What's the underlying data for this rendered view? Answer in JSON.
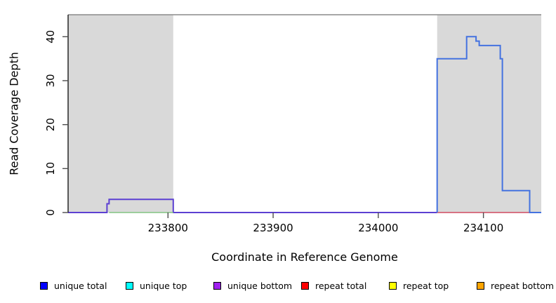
{
  "chart_data": {
    "type": "line",
    "subtype": "step-coverage",
    "title": "",
    "xlabel": "Coordinate in Reference Genome",
    "ylabel": "Read Coverage Depth",
    "xlim": [
      233705,
      234155
    ],
    "ylim": [
      0,
      45
    ],
    "x_ticks": [
      233800,
      233900,
      234000,
      234100
    ],
    "y_ticks": [
      0,
      10,
      20,
      30,
      40
    ],
    "grid": false,
    "plot_bg": "#ffffff",
    "frame": {
      "top_border_color": "#8a8a8a",
      "axis_color": "#1a1a1a",
      "tick_color": "#4d4d4d",
      "text_color": "#000000",
      "shade_color": "#d9d9d9"
    },
    "shaded_regions": [
      {
        "x0": 233705,
        "x1": 233805
      },
      {
        "x0": 234056,
        "x1": 234155
      }
    ],
    "series": [
      {
        "name": "unique_bottom_total_overlap",
        "color": "#5c40d2",
        "width": 2,
        "points": [
          [
            233705,
            0
          ],
          [
            233742,
            0
          ],
          [
            233742,
            2
          ],
          [
            233744,
            2
          ],
          [
            233744,
            3
          ],
          [
            233805,
            3
          ],
          [
            233805,
            0
          ],
          [
            234056,
            0
          ]
        ]
      },
      {
        "name": "top_strand_zero_overlap",
        "color": "#82c482",
        "width": 1.6,
        "points": [
          [
            233744,
            0
          ],
          [
            233805,
            0
          ]
        ]
      },
      {
        "name": "repeat_total_zero",
        "color": "#d04a60",
        "width": 1.6,
        "points": [
          [
            234056,
            0
          ],
          [
            234144,
            0
          ]
        ]
      },
      {
        "name": "unique_total_block",
        "color": "#4472e0",
        "width": 2,
        "points": [
          [
            234056,
            0
          ],
          [
            234056,
            35
          ],
          [
            234084,
            35
          ],
          [
            234084,
            40
          ],
          [
            234093,
            40
          ],
          [
            234093,
            39
          ],
          [
            234096,
            39
          ],
          [
            234096,
            38
          ],
          [
            234116,
            38
          ],
          [
            234116,
            35
          ],
          [
            234118,
            35
          ],
          [
            234118,
            5
          ],
          [
            234144,
            5
          ],
          [
            234144,
            0
          ],
          [
            234155,
            0
          ]
        ]
      }
    ],
    "legend_position": "bottom",
    "legend": [
      {
        "label": "unique total",
        "color": "#0000ff"
      },
      {
        "label": "unique top",
        "color": "#00ffff"
      },
      {
        "label": "unique bottom",
        "color": "#a020f0"
      },
      {
        "label": "repeat total",
        "color": "#ff0000"
      },
      {
        "label": "repeat top",
        "color": "#ffff00"
      },
      {
        "label": "repeat bottom",
        "color": "#ffa500"
      }
    ]
  }
}
